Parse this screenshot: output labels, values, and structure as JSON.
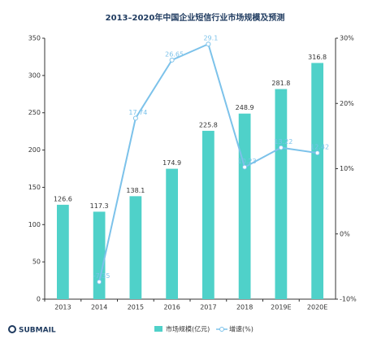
{
  "chart_data": {
    "type": "bar-line",
    "title": "2013–2020年中国企业短信行业市场规模及预测",
    "categories": [
      "2013",
      "2014",
      "2015",
      "2016",
      "2017",
      "2018",
      "2019E",
      "2020E"
    ],
    "series": [
      {
        "name": "市场规模(亿元)",
        "type": "bar",
        "color": "#4fd1c9",
        "values": [
          126.6,
          117.3,
          138.1,
          174.9,
          225.8,
          248.9,
          281.8,
          316.8
        ]
      },
      {
        "name": "增速(%)",
        "type": "line",
        "axis": "y2",
        "color": "#7cc2ea",
        "values": [
          null,
          -7.35,
          17.74,
          26.65,
          29.1,
          10.23,
          13.22,
          12.42
        ]
      }
    ],
    "ylim": [
      0,
      350
    ],
    "yticks": [
      0,
      50,
      100,
      150,
      200,
      250,
      300,
      350
    ],
    "y2lim": [
      -10,
      30
    ],
    "y2ticks": [
      {
        "value": -10,
        "label": "-10%"
      },
      {
        "value": 0,
        "label": "0%"
      },
      {
        "value": 10,
        "label": "10%"
      },
      {
        "value": 20,
        "label": "20%"
      },
      {
        "value": 30,
        "label": "30%"
      }
    ],
    "brand": "SUBMAIL"
  }
}
